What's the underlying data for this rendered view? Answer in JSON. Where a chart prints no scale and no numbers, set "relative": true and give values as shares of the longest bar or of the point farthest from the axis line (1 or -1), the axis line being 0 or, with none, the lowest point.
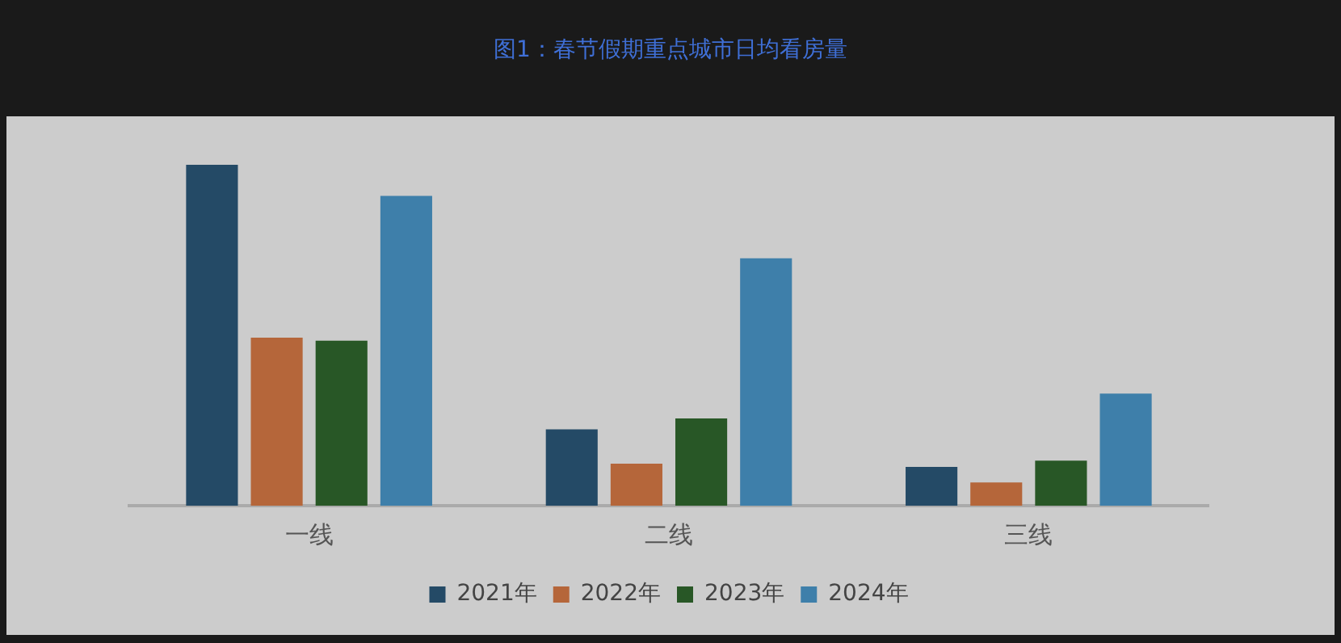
{
  "chart_data": {
    "type": "bar",
    "title": "图1：春节假期重点城市日均看房量",
    "relative": true,
    "categories": [
      "一线",
      "二线",
      "三线"
    ],
    "series": [
      {
        "name": "2021年",
        "color": "#244a66",
        "values": [
          1,
          0.224,
          0.114
        ]
      },
      {
        "name": "2022年",
        "color": "#b5663a",
        "values": [
          0.493,
          0.123,
          0.068
        ]
      },
      {
        "name": "2023年",
        "color": "#285726",
        "values": [
          0.484,
          0.256,
          0.132
        ]
      },
      {
        "name": "2024年",
        "color": "#3e7faa",
        "values": [
          0.909,
          0.726,
          0.329
        ]
      }
    ],
    "legend": "bottom",
    "grid": false
  }
}
